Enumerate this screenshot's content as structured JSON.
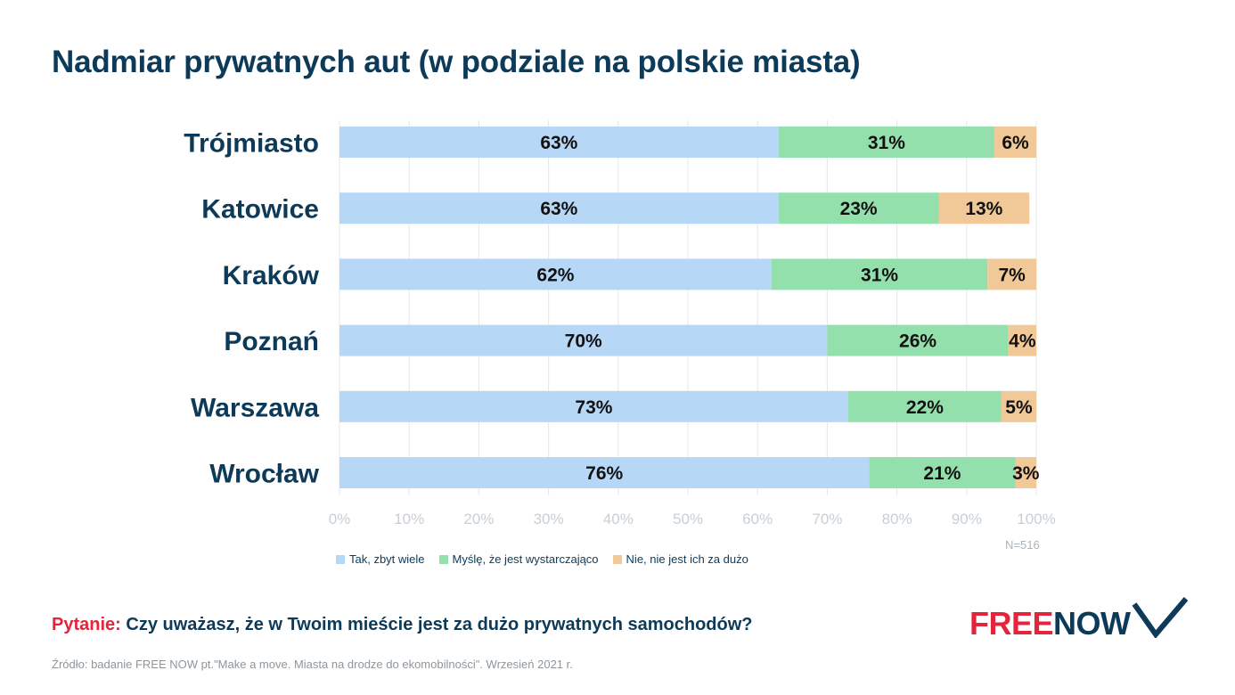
{
  "title": "Nadmiar prywatnych aut (w podziale na polskie miasta)",
  "chart_data": {
    "type": "bar",
    "orientation": "horizontal",
    "stacked": true,
    "categories": [
      "Trójmiasto",
      "Katowice",
      "Kraków",
      "Poznań",
      "Warszawa",
      "Wrocław"
    ],
    "series": [
      {
        "name": "Tak, zbyt wiele",
        "color": "#b7d7f7",
        "values": [
          63,
          63,
          62,
          70,
          73,
          76
        ],
        "labels": [
          "63%",
          "63%",
          "62%",
          "70%",
          "73%",
          "76%"
        ]
      },
      {
        "name": "Myślę, że jest wystarczająco",
        "color": "#93e0ad",
        "values": [
          31,
          23,
          31,
          26,
          22,
          21
        ],
        "labels": [
          "31%",
          "23%",
          "31%",
          "26%",
          "22%",
          "21%"
        ]
      },
      {
        "name": "Nie, nie jest ich za dużo",
        "color": "#f1c898",
        "values": [
          6,
          13,
          7,
          4,
          5,
          3
        ],
        "labels": [
          "6%",
          "13%",
          "7%",
          "4%",
          "5%",
          "3%"
        ]
      }
    ],
    "xlim": [
      0,
      100
    ],
    "x_ticks": [
      "0%",
      "10%",
      "20%",
      "30%",
      "40%",
      "50%",
      "60%",
      "70%",
      "80%",
      "90%",
      "100%"
    ],
    "grid": true,
    "legend_position": "bottom"
  },
  "sample_note": "N=516",
  "question": {
    "prefix": "Pytanie:",
    "text": "Czy uważasz, że w Twoim mieście jest za dużo prywatnych samochodów?"
  },
  "source": "Źródło: badanie FREE NOW pt.\"Make a move. Miasta na drodze do ekomobilności\". Wrzesień 2021 r.",
  "logo": {
    "part1": "FREE",
    "part2": "NOW",
    "color1": "#e3243b",
    "color2": "#0c3a58"
  }
}
